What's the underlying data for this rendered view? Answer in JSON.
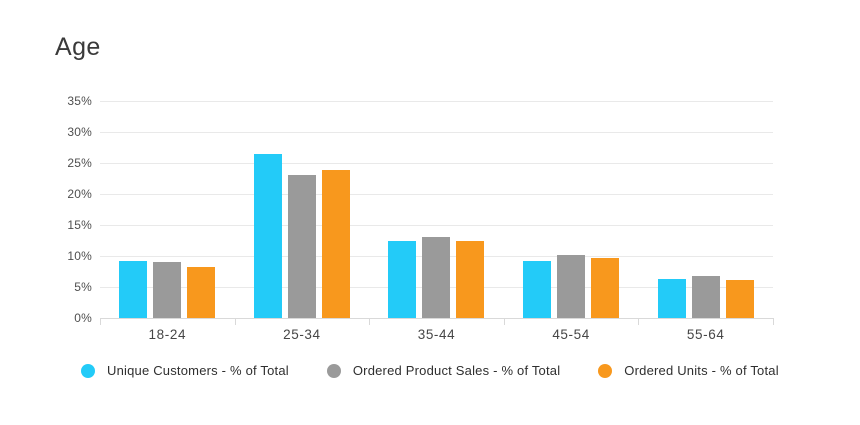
{
  "title": "Age",
  "colors": {
    "background": "#ffffff",
    "title_text": "#3a3a3a",
    "axis_text": "#4f4f4f",
    "x_axis_text": "#464646",
    "legend_text": "#2f2f2f",
    "gridline": "#e9e9e9",
    "axis_line": "#d9d9d9"
  },
  "chart_data": {
    "type": "bar",
    "title": "Age",
    "categories": [
      "18-24",
      "25-34",
      "35-44",
      "45-54",
      "55-64"
    ],
    "series": [
      {
        "name": "Unique Customers - % of Total",
        "color": "#23cbf8",
        "values": [
          9.2,
          26.5,
          12.5,
          9.2,
          6.3
        ]
      },
      {
        "name": "Ordered Product Sales - % of Total",
        "color": "#9a9a9a",
        "values": [
          9.1,
          23.0,
          13.1,
          10.1,
          6.8
        ]
      },
      {
        "name": "Ordered Units - % of Total",
        "color": "#f8981d",
        "values": [
          8.3,
          23.9,
          12.5,
          9.6,
          6.2
        ]
      }
    ],
    "y_ticks": [
      "35%",
      "30%",
      "25%",
      "20%",
      "15%",
      "10%",
      "5%",
      "0%"
    ],
    "y_tick_values": [
      35,
      30,
      25,
      20,
      15,
      10,
      5,
      0
    ],
    "ylim": [
      0,
      35
    ],
    "xlabel": "",
    "ylabel": "",
    "grid": true,
    "legend_position": "bottom"
  }
}
